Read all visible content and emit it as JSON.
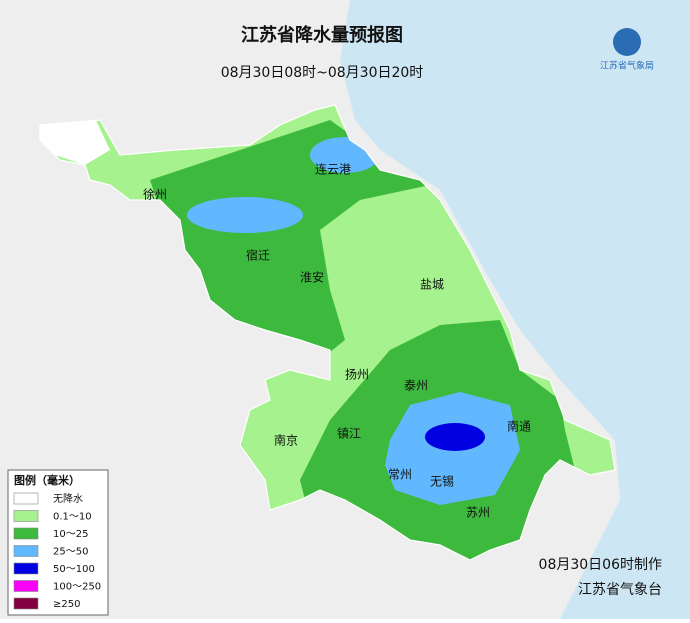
{
  "header": {
    "title": "江苏省降水量预报图",
    "subtitle": "08月30日08时~08月30日20时"
  },
  "logo": {
    "text": "江苏省气象局"
  },
  "cities": [
    {
      "label": "徐州"
    },
    {
      "label": "连云港"
    },
    {
      "label": "宿迁"
    },
    {
      "label": "淮安"
    },
    {
      "label": "盐城"
    },
    {
      "label": "扬州"
    },
    {
      "label": "泰州"
    },
    {
      "label": "南京"
    },
    {
      "label": "镇江"
    },
    {
      "label": "南通"
    },
    {
      "label": "常州"
    },
    {
      "label": "无锡"
    },
    {
      "label": "苏州"
    }
  ],
  "legend": {
    "title": "图例（毫米）",
    "items": [
      {
        "label": "无降水",
        "color": "#ffffff"
      },
      {
        "label": "0.1～10",
        "color": "#a6f28f"
      },
      {
        "label": "10～25",
        "color": "#3dba3d"
      },
      {
        "label": "25～50",
        "color": "#61b8ff"
      },
      {
        "label": "50～100",
        "color": "#0000e1"
      },
      {
        "label": "100～250",
        "color": "#fa00fa"
      },
      {
        "label": "≥250",
        "color": "#800040"
      }
    ]
  },
  "footer": {
    "made": "08月30日06时制作",
    "agency": "江苏省气象台"
  }
}
